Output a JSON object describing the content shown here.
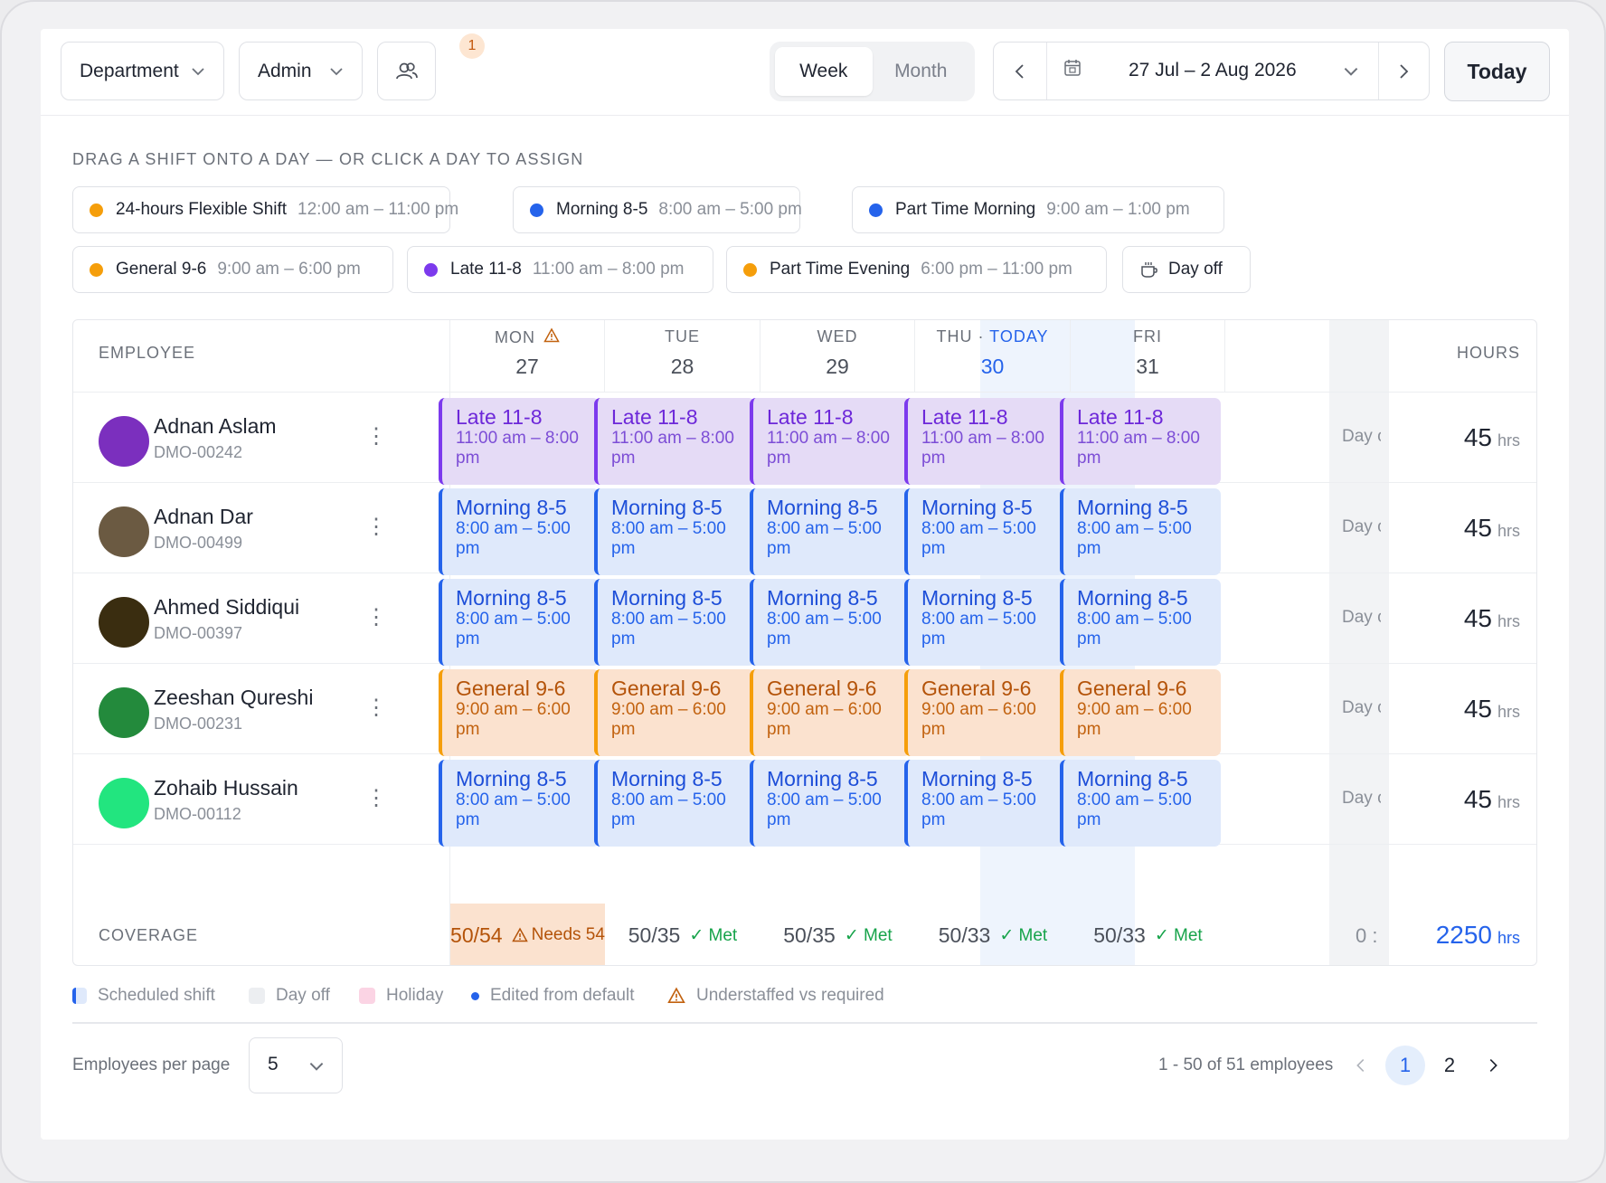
{
  "toolbar": {
    "department": "Department",
    "role": "Admin",
    "group_badge": "1",
    "view_week": "Week",
    "view_month": "Month",
    "date_range": "27 Jul – 2 Aug 2026",
    "today": "Today"
  },
  "palette": {
    "hint": "DRAG A SHIFT ONTO A DAY — OR CLICK A DAY TO ASSIGN",
    "chips": [
      {
        "name": "24-hours Flexible Shift",
        "time": "12:00 am – 11:00 pm",
        "color": "#f59e0b"
      },
      {
        "name": "Morning 8-5",
        "time": "8:00 am – 5:00 pm",
        "color": "#2563eb"
      },
      {
        "name": "Part Time Morning",
        "time": "9:00 am – 1:00 pm",
        "color": "#2563eb"
      },
      {
        "name": "General 9-6",
        "time": "9:00 am – 6:00 pm",
        "color": "#f59e0b"
      },
      {
        "name": "Late 11-8",
        "time": "11:00 am – 8:00 pm",
        "color": "#7c3aed"
      },
      {
        "name": "Part Time Evening",
        "time": "6:00 pm – 11:00 pm",
        "color": "#f59e0b"
      }
    ],
    "dayoff": "Day off"
  },
  "grid": {
    "employee_header": "EMPLOYEE",
    "hours_header": "HOURS",
    "days": [
      {
        "name": "MON",
        "num": "27"
      },
      {
        "name": "TUE",
        "num": "28"
      },
      {
        "name": "WED",
        "num": "29"
      },
      {
        "name": "THU · ",
        "today": "TODAY",
        "num": "30"
      },
      {
        "name": "FRI",
        "num": "31"
      }
    ],
    "employees": [
      {
        "name": "Adnan Aslam",
        "id": "DMO-00242",
        "avatar": "#7b2fbe",
        "shift": "Late 11-8",
        "time1": "11:00 am – 8:00",
        "time2": "pm",
        "style": "purple",
        "dayoff": "Day off",
        "hours": "45",
        "unit": "hrs"
      },
      {
        "name": "Adnan Dar",
        "id": "DMO-00499",
        "avatar": "#6b5a42",
        "shift": "Morning 8-5",
        "time1": "8:00 am – 5:00",
        "time2": "pm",
        "style": "blue",
        "dayoff": "Day off",
        "hours": "45",
        "unit": "hrs"
      },
      {
        "name": "Ahmed Siddiqui",
        "id": "DMO-00397",
        "avatar": "#3a2d10",
        "shift": "Morning 8-5",
        "time1": "8:00 am – 5:00",
        "time2": "pm",
        "style": "blue",
        "dayoff": "Day off",
        "hours": "45",
        "unit": "hrs"
      },
      {
        "name": "Zeeshan Qureshi",
        "id": "DMO-00231",
        "avatar": "#238a3c",
        "shift": "General 9-6",
        "time1": "9:00 am – 6:00",
        "time2": "pm",
        "style": "orange",
        "dayoff": "Day off",
        "hours": "45",
        "unit": "hrs"
      },
      {
        "name": "Zohaib Hussain",
        "id": "DMO-00112",
        "avatar": "#22e57f",
        "shift": "Morning 8-5",
        "time1": "8:00 am – 5:00",
        "time2": "pm",
        "style": "blue",
        "dayoff": "Day off",
        "hours": "45",
        "unit": "hrs"
      }
    ],
    "coverage_label": "COVERAGE",
    "coverage": [
      {
        "value": "50/54",
        "status": "Needs 54",
        "kind": "warn"
      },
      {
        "value": "50/35",
        "status": "Met",
        "kind": "ok"
      },
      {
        "value": "50/35",
        "status": "Met",
        "kind": "ok"
      },
      {
        "value": "50/33",
        "status": "Met",
        "kind": "ok"
      },
      {
        "value": "50/33",
        "status": "Met",
        "kind": "ok"
      }
    ],
    "coverage_dayoff": "0 :",
    "total_hours": "2250",
    "total_unit": "hrs"
  },
  "legend": {
    "scheduled": "Scheduled shift",
    "dayoff": "Day off",
    "holiday": "Holiday",
    "edited": "Edited from default",
    "understaffed": "Understaffed vs required"
  },
  "footer": {
    "per_page_label": "Employees per page",
    "per_page_value": "5",
    "range": "1 - 50 of 51 employees",
    "pages": [
      "1",
      "2"
    ]
  }
}
